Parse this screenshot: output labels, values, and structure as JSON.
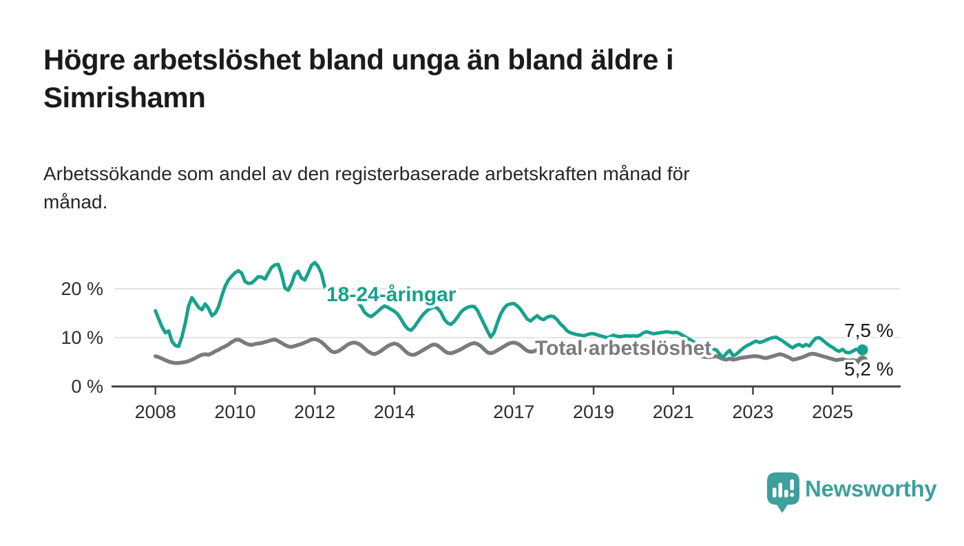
{
  "title_line1": "Högre arbetslöshet bland unga än bland äldre i",
  "title_line2": "Simrishamn",
  "subtitle_line1": "Arbetssökande som andel av den registerbaserade arbetskraften månad för",
  "subtitle_line2": "månad.",
  "brand": {
    "name": "Newsworthy",
    "color": "#3f9f9c"
  },
  "chart_data": {
    "type": "line",
    "unit": "%",
    "frequency": "monthly",
    "x_start": "2008-01",
    "x_end": "2025-10",
    "grid": true,
    "ylim": [
      0,
      27
    ],
    "y_ticks": [
      {
        "value": 0,
        "label": "0 %"
      },
      {
        "value": 10,
        "label": "10 %"
      },
      {
        "value": 20,
        "label": "20 %"
      }
    ],
    "x_ticks": [
      {
        "year": 2008,
        "label": "2008"
      },
      {
        "year": 2010,
        "label": "2010"
      },
      {
        "year": 2012,
        "label": "2012"
      },
      {
        "year": 2014,
        "label": "2014"
      },
      {
        "year": 2017,
        "label": "2017"
      },
      {
        "year": 2019,
        "label": "2019"
      },
      {
        "year": 2021,
        "label": "2021"
      },
      {
        "year": 2023,
        "label": "2023"
      },
      {
        "year": 2025,
        "label": "2025"
      }
    ],
    "series": [
      {
        "name": "18-24-åringar",
        "color": "#17a28c",
        "end_label": "7,5 %",
        "end_value": 7.5,
        "start_year": 2008,
        "monthly_values": [
          15.5,
          13.8,
          12.2,
          11.0,
          11.4,
          9.2,
          8.4,
          8.2,
          10.2,
          13.0,
          16.5,
          18.2,
          17.2,
          16.2,
          15.7,
          16.9,
          16.0,
          14.5,
          15.0,
          16.3,
          18.5,
          20.5,
          21.8,
          22.6,
          23.3,
          23.7,
          23.2,
          21.5,
          21.1,
          21.2,
          21.8,
          22.5,
          22.4,
          22.0,
          23.2,
          24.4,
          24.9,
          25.0,
          23.0,
          20.2,
          19.7,
          21.0,
          23.0,
          23.6,
          22.2,
          21.8,
          23.2,
          24.8,
          25.4,
          24.6,
          23.2,
          20.4,
          19.8,
          19.4,
          19.0,
          19.2,
          19.6,
          19.8,
          19.5,
          18.8,
          18.0,
          17.2,
          16.4,
          15.2,
          14.6,
          14.3,
          14.8,
          15.4,
          16.0,
          16.5,
          16.2,
          15.8,
          15.4,
          14.8,
          13.8,
          12.6,
          11.8,
          11.5,
          12.2,
          13.2,
          14.2,
          15.0,
          15.6,
          16.0,
          16.3,
          16.0,
          15.2,
          13.8,
          13.0,
          12.7,
          13.3,
          14.2,
          15.2,
          15.8,
          16.2,
          16.4,
          16.4,
          15.6,
          14.2,
          12.8,
          11.4,
          10.1,
          11.0,
          13.0,
          14.8,
          16.0,
          16.7,
          16.9,
          17.0,
          16.5,
          15.8,
          14.8,
          13.8,
          13.4,
          14.0,
          14.5,
          13.9,
          13.7,
          14.2,
          14.4,
          14.3,
          13.7,
          12.8,
          12.2,
          11.4,
          11.0,
          10.8,
          10.6,
          10.5,
          10.4,
          10.6,
          10.8,
          10.8,
          10.6,
          10.4,
          10.2,
          10.0,
          10.2,
          10.5,
          10.3,
          10.2,
          10.3,
          10.4,
          10.3,
          10.4,
          10.3,
          10.5,
          11.0,
          11.2,
          11.0,
          10.8,
          10.9,
          11.0,
          11.1,
          11.2,
          11.1,
          11.0,
          11.1,
          10.8,
          10.4,
          10.0,
          9.6,
          9.2,
          8.8,
          8.4,
          8.0,
          7.8,
          7.6,
          7.6,
          7.5,
          6.6,
          5.9,
          6.8,
          7.4,
          6.3,
          6.6,
          7.2,
          7.8,
          8.3,
          8.6,
          9.0,
          9.3,
          9.0,
          9.2,
          9.5,
          9.8,
          10.0,
          10.1,
          9.7,
          9.3,
          8.8,
          8.3,
          7.9,
          8.4,
          8.6,
          8.2,
          8.6,
          8.3,
          9.2,
          9.9,
          10.0,
          9.5,
          8.9,
          8.4,
          8.0,
          7.5,
          7.2,
          7.6,
          7.0,
          6.9,
          7.2,
          7.6,
          7.4,
          7.5
        ]
      },
      {
        "name": "Total arbetslöshet",
        "color": "#7b7b7b",
        "end_label": "5,2 %",
        "end_value": 5.2,
        "start_year": 2008,
        "monthly_values": [
          6.2,
          6.0,
          5.7,
          5.4,
          5.1,
          4.9,
          4.8,
          4.8,
          4.9,
          5.0,
          5.2,
          5.5,
          5.8,
          6.2,
          6.5,
          6.6,
          6.5,
          6.8,
          7.2,
          7.5,
          7.9,
          8.2,
          8.6,
          9.1,
          9.5,
          9.6,
          9.3,
          8.9,
          8.6,
          8.5,
          8.7,
          8.8,
          8.9,
          9.1,
          9.3,
          9.5,
          9.6,
          9.3,
          8.9,
          8.5,
          8.2,
          8.1,
          8.3,
          8.5,
          8.7,
          9.0,
          9.3,
          9.6,
          9.7,
          9.5,
          9.1,
          8.5,
          7.8,
          7.2,
          7.0,
          7.2,
          7.6,
          8.1,
          8.6,
          8.9,
          9.0,
          8.8,
          8.4,
          7.8,
          7.2,
          6.8,
          6.6,
          6.9,
          7.3,
          7.8,
          8.3,
          8.6,
          8.8,
          8.6,
          8.1,
          7.4,
          6.8,
          6.5,
          6.5,
          6.8,
          7.2,
          7.6,
          8.0,
          8.4,
          8.6,
          8.4,
          7.9,
          7.3,
          6.9,
          6.8,
          7.0,
          7.3,
          7.6,
          8.0,
          8.4,
          8.7,
          8.9,
          8.7,
          8.3,
          7.6,
          7.0,
          6.8,
          7.0,
          7.4,
          7.8,
          8.2,
          8.6,
          8.9,
          9.0,
          8.8,
          8.4,
          7.8,
          7.3,
          7.1,
          7.2,
          7.5,
          7.8,
          8.0,
          8.1,
          8.1,
          8.0,
          7.8,
          7.5,
          7.2,
          7.0,
          6.9,
          7.0,
          7.2,
          7.3,
          7.4,
          7.5,
          7.6,
          7.6,
          7.5,
          7.4,
          7.2,
          7.1,
          7.2,
          7.4,
          7.5,
          7.5,
          7.6,
          7.7,
          7.8,
          7.9,
          7.8,
          8.0,
          8.4,
          8.5,
          8.5,
          8.4,
          8.3,
          8.2,
          8.1,
          8.0,
          7.9,
          7.8,
          7.6,
          7.4,
          7.1,
          6.9,
          6.7,
          6.5,
          6.3,
          6.2,
          6.1,
          6.0,
          6.0,
          6.1,
          6.2,
          5.9,
          5.6,
          5.5,
          5.7,
          5.5,
          5.6,
          5.8,
          5.9,
          6.0,
          6.1,
          6.2,
          6.2,
          6.1,
          5.9,
          5.8,
          6.0,
          6.2,
          6.4,
          6.6,
          6.5,
          6.2,
          5.9,
          5.5,
          5.6,
          5.8,
          6.0,
          6.3,
          6.6,
          6.7,
          6.6,
          6.4,
          6.2,
          6.0,
          5.8,
          5.6,
          5.4,
          5.5,
          5.6,
          5.4,
          5.3,
          5.4,
          5.3,
          5.3,
          5.2
        ]
      }
    ]
  }
}
